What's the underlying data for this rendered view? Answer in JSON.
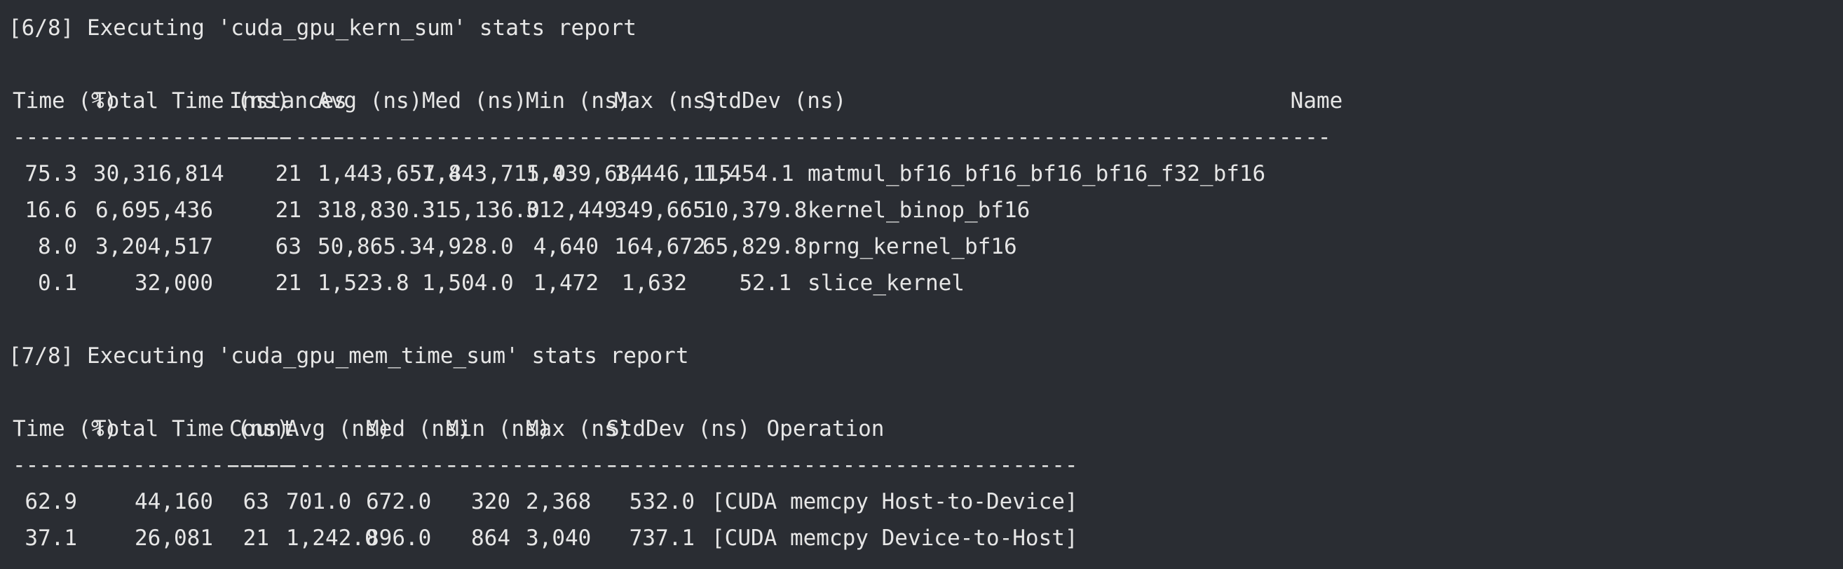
{
  "terminal": {
    "section1": {
      "header": "[6/8] Executing 'cuda_gpu_kern_sum' stats report",
      "columns": [
        {
          "label": "Time (%)",
          "dashes": "--------"
        },
        {
          "label": "Total Time (ns)",
          "dashes": "---------------"
        },
        {
          "label": "Instances",
          "dashes": "---------"
        },
        {
          "label": "Avg (ns)",
          "dashes": "-----------"
        },
        {
          "label": "Med (ns)",
          "dashes": "-----------"
        },
        {
          "label": "Min (ns)",
          "dashes": "---------"
        },
        {
          "label": "Max (ns)",
          "dashes": "---------"
        },
        {
          "label": "StdDev (ns)",
          "dashes": "-----------"
        },
        {
          "label": "Name",
          "dashes": "----------------------------------------"
        }
      ],
      "rows": [
        [
          "75.3",
          "30,316,814",
          "21",
          "1,443,657.8",
          "1,443,715.0",
          "1,439,684",
          "1,446,115",
          "1,454.1",
          "matmul_bf16_bf16_bf16_bf16_f32_bf16"
        ],
        [
          "16.6",
          "6,695,436",
          "21",
          "318,830.3",
          "315,136.0",
          "312,449",
          "349,665",
          "10,379.8",
          "kernel_binop_bf16"
        ],
        [
          "8.0",
          "3,204,517",
          "63",
          "50,865.3",
          "4,928.0",
          "4,640",
          "164,672",
          "65,829.8",
          "prng_kernel_bf16"
        ],
        [
          "0.1",
          "32,000",
          "21",
          "1,523.8",
          "1,504.0",
          "1,472",
          "1,632",
          "52.1",
          "slice_kernel"
        ]
      ]
    },
    "section2": {
      "header": "[7/8] Executing 'cuda_gpu_mem_time_sum' stats report",
      "columns": [
        {
          "label": "Time (%)",
          "dashes": "--------"
        },
        {
          "label": "Total Time (ns)",
          "dashes": "---------------"
        },
        {
          "label": "Count",
          "dashes": "-----"
        },
        {
          "label": "Avg (ns)",
          "dashes": "--------"
        },
        {
          "label": "Med (ns)",
          "dashes": "--------"
        },
        {
          "label": "Min (ns)",
          "dashes": "--------"
        },
        {
          "label": "Max (ns)",
          "dashes": "--------"
        },
        {
          "label": "StdDev (ns)",
          "dashes": "-----------"
        },
        {
          "label": "Operation",
          "dashes": "----------------------------"
        }
      ],
      "rows": [
        [
          "62.9",
          "44,160",
          "63",
          "701.0",
          "672.0",
          "320",
          "2,368",
          "532.0",
          "[CUDA memcpy Host-to-Device]"
        ],
        [
          "37.1",
          "26,081",
          "21",
          "1,242.0",
          "896.0",
          "864",
          "3,040",
          "737.1",
          "[CUDA memcpy Device-to-Host]"
        ]
      ]
    }
  }
}
